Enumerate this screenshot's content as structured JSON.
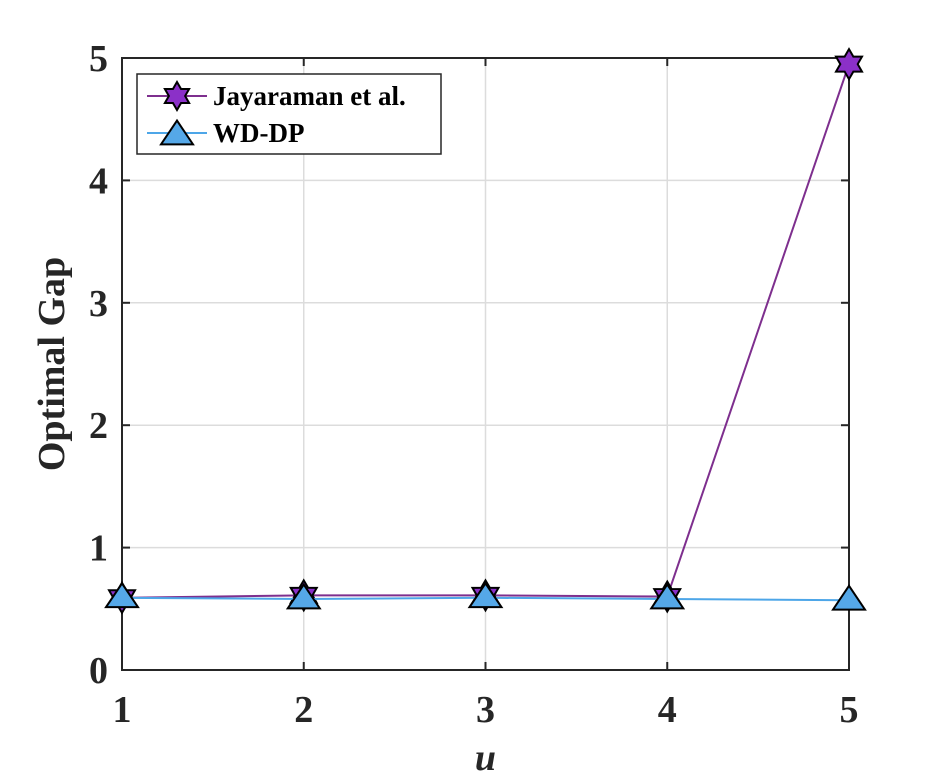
{
  "chart_data": {
    "type": "line",
    "title": "",
    "xlabel": "u",
    "ylabel": "Optimal Gap",
    "x": [
      1,
      2,
      3,
      4,
      5
    ],
    "xlim": [
      1,
      5
    ],
    "ylim": [
      0,
      5
    ],
    "xticks": [
      "1",
      "2",
      "3",
      "4",
      "5"
    ],
    "yticks": [
      "0",
      "1",
      "2",
      "3",
      "4",
      "5"
    ],
    "grid": true,
    "legend_position": "top-left",
    "series": [
      {
        "name": "Jayaraman et al.",
        "values": [
          0.59,
          0.61,
          0.61,
          0.6,
          4.95
        ],
        "color": "#7E2F8E",
        "marker_fill": "#8B30C8",
        "marker": "hexagram"
      },
      {
        "name": "WD-DP",
        "values": [
          0.59,
          0.58,
          0.59,
          0.58,
          0.57
        ],
        "color": "#4DA6E8",
        "marker_fill": "#55A8E8",
        "marker": "triangle"
      }
    ]
  }
}
